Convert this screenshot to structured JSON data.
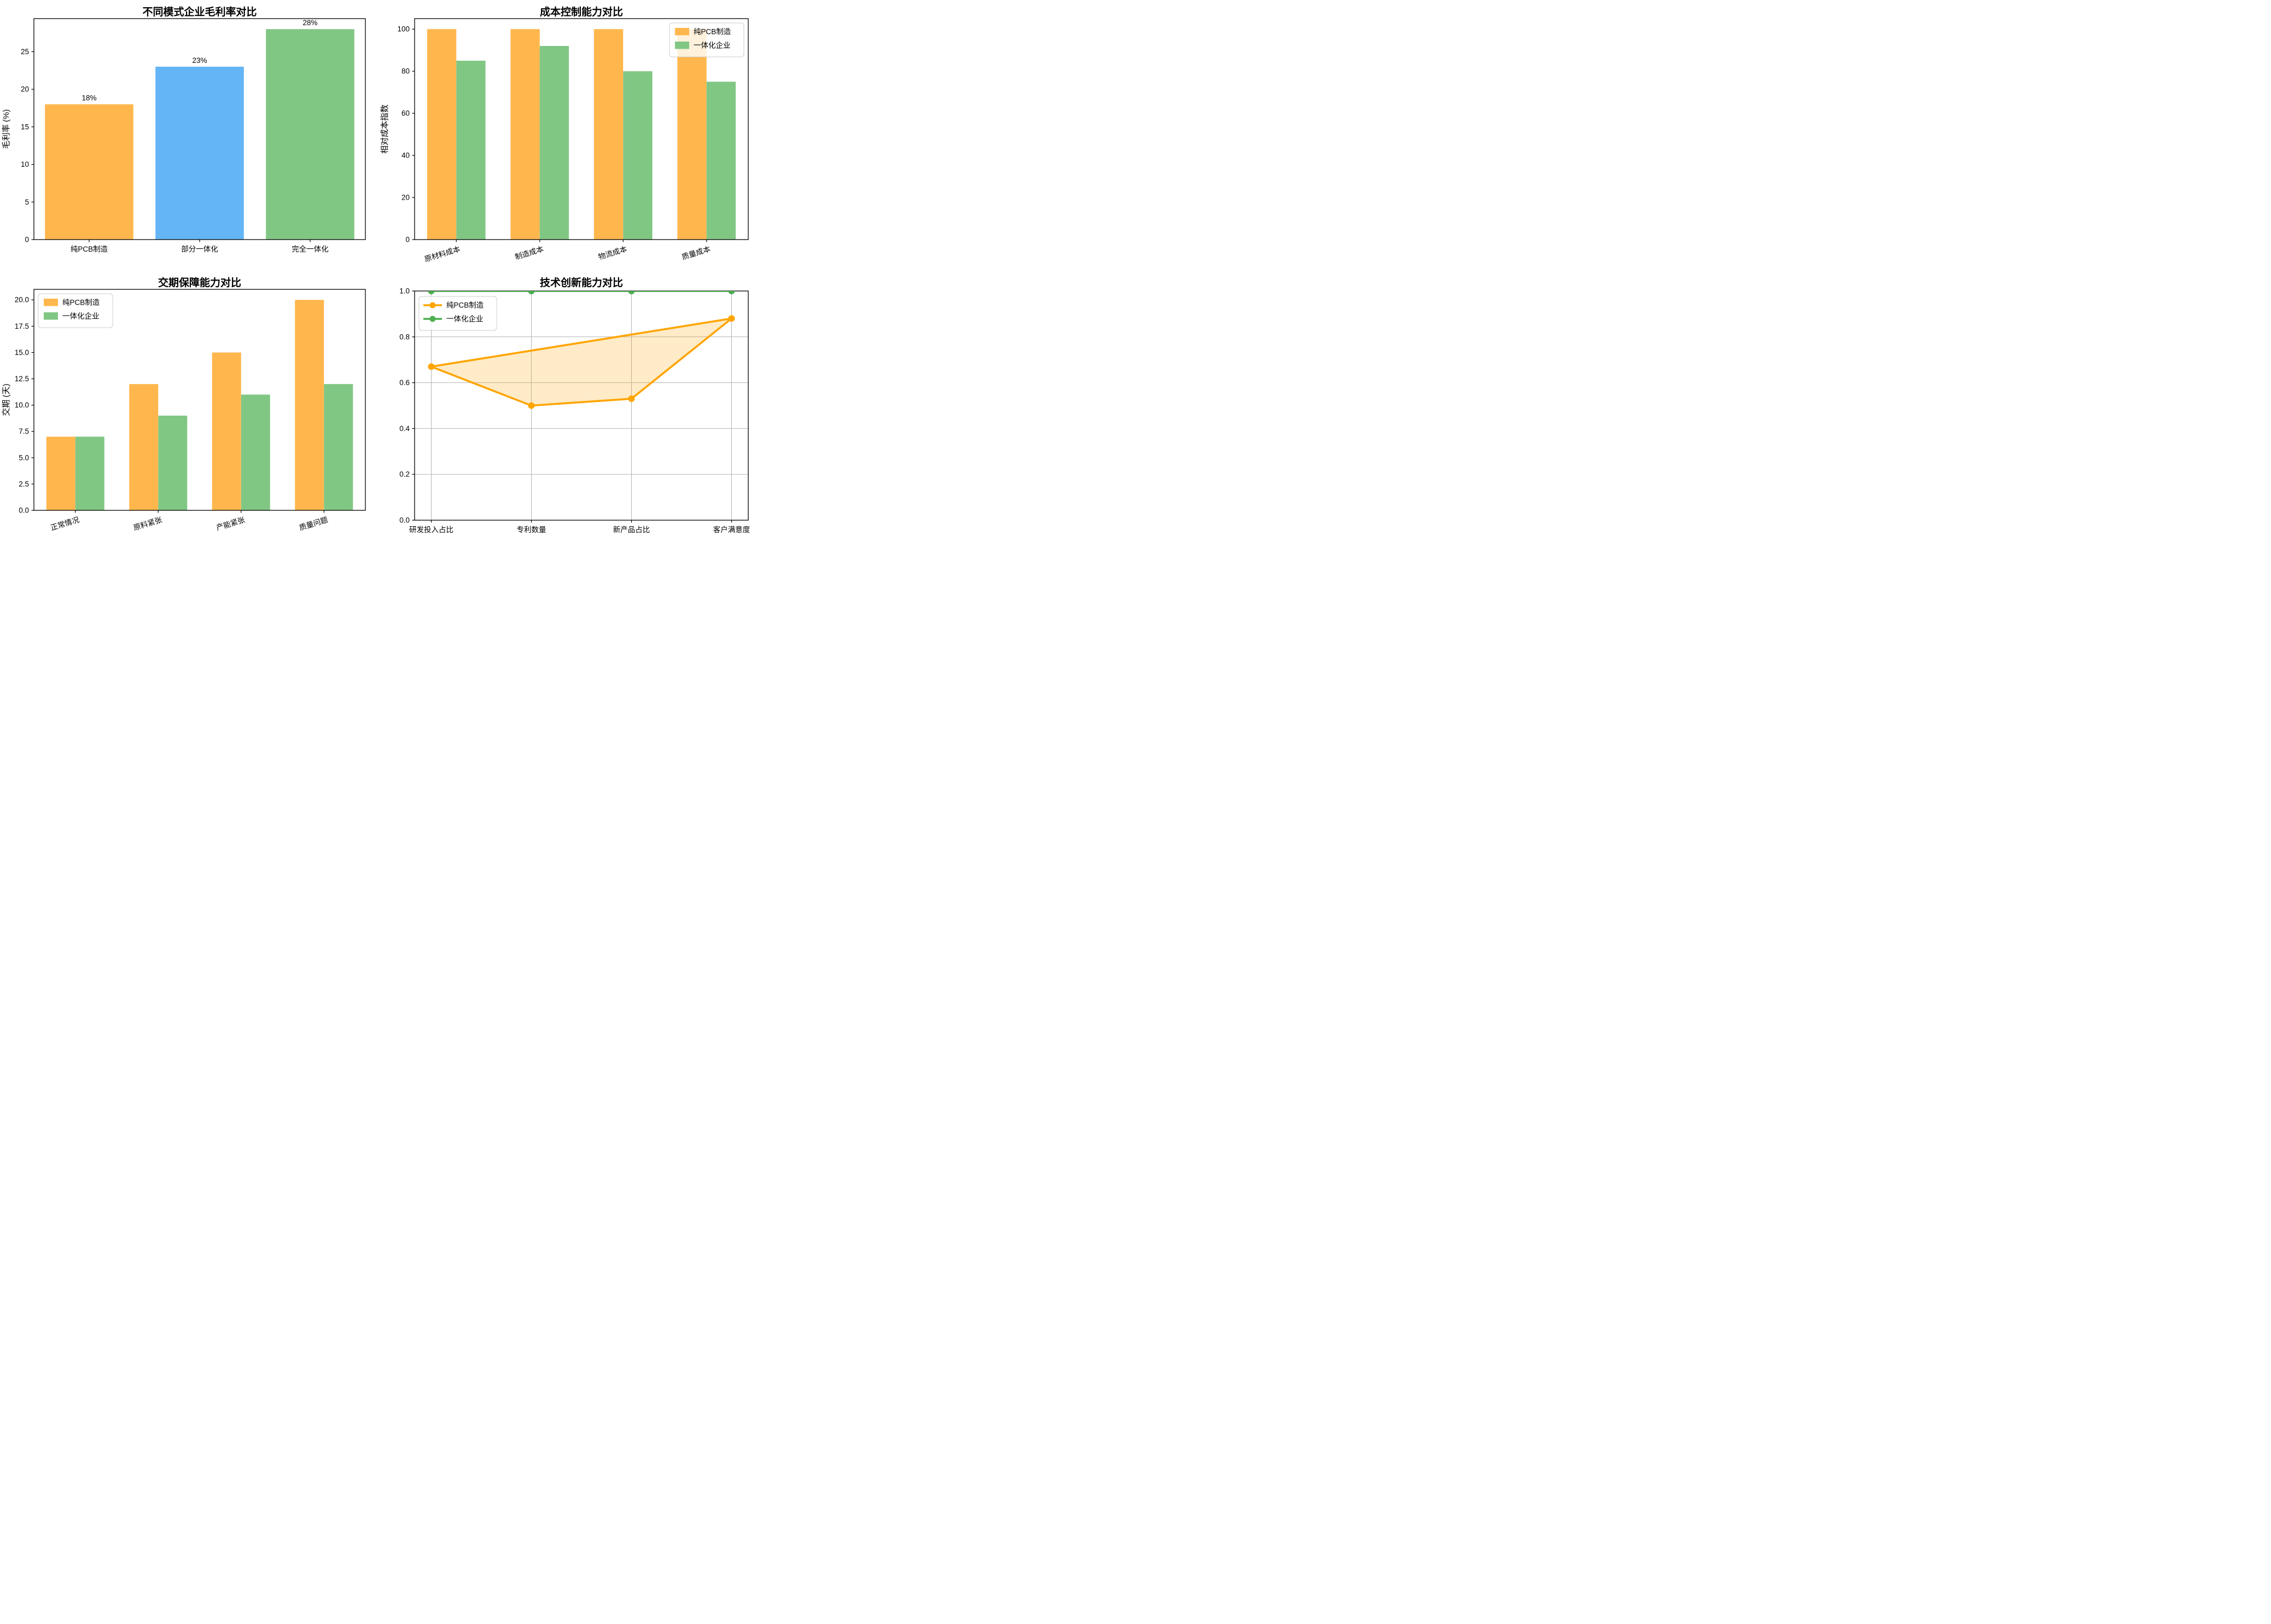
{
  "figure": {
    "background": "#ffffff"
  },
  "chart_data": [
    {
      "type": "bar",
      "title": "不同模式企业毛利率对比",
      "ylabel": "毛利率 (%)",
      "categories": [
        "纯PCB制造",
        "部分一体化",
        "完全一体化"
      ],
      "values": [
        18,
        23,
        28
      ],
      "bar_labels": [
        "18%",
        "23%",
        "28%"
      ],
      "bar_colors": [
        "#FFB74D",
        "#64B5F6",
        "#81C784"
      ],
      "bar_width": 0.8,
      "ylim": [
        0,
        29.4
      ],
      "yticks": [
        0,
        5,
        10,
        15,
        20,
        25
      ],
      "ytick_labels": [
        "0",
        "5",
        "10",
        "15",
        "20",
        "25"
      ],
      "grid": false,
      "xtick_rotation": 0
    },
    {
      "type": "grouped_bar",
      "title": "成本控制能力对比",
      "ylabel": "相对成本指数",
      "categories": [
        "原材料成本",
        "制造成本",
        "物流成本",
        "质量成本"
      ],
      "series": [
        {
          "name": "纯PCB制造",
          "color": "#FFB74D",
          "values": [
            100,
            100,
            100,
            100
          ]
        },
        {
          "name": "一体化企业",
          "color": "#81C784",
          "values": [
            85,
            92,
            80,
            75
          ]
        }
      ],
      "bar_width": 0.35,
      "ylim": [
        0,
        105
      ],
      "yticks": [
        0,
        20,
        40,
        60,
        80,
        100
      ],
      "ytick_labels": [
        "0",
        "20",
        "40",
        "60",
        "80",
        "100"
      ],
      "grid": false,
      "legend": {
        "position": "upper-right",
        "kind": "patch"
      },
      "xtick_rotation": 17
    },
    {
      "type": "grouped_bar",
      "title": "交期保障能力对比",
      "ylabel": "交期 (天)",
      "categories": [
        "正常情况",
        "原料紧张",
        "产能紧张",
        "质量问题"
      ],
      "series": [
        {
          "name": "纯PCB制造",
          "color": "#FFB74D",
          "values": [
            7,
            12,
            15,
            20
          ]
        },
        {
          "name": "一体化企业",
          "color": "#81C784",
          "values": [
            7,
            9,
            11,
            12
          ]
        }
      ],
      "bar_width": 0.35,
      "ylim": [
        0,
        21
      ],
      "yticks": [
        0,
        2.5,
        5,
        7.5,
        10,
        12.5,
        15,
        17.5,
        20
      ],
      "ytick_labels": [
        "0.0",
        "2.5",
        "5.0",
        "7.5",
        "10.0",
        "12.5",
        "15.0",
        "17.5",
        "20.0"
      ],
      "grid": false,
      "legend": {
        "position": "upper-left",
        "kind": "patch"
      },
      "xtick_rotation": 17
    },
    {
      "type": "line",
      "title": "技术创新能力对比",
      "ylabel": "",
      "categories": [
        "研发投入占比",
        "专利数量",
        "新产品占比",
        "客户满意度"
      ],
      "series": [
        {
          "name": "纯PCB制造",
          "color": "#FFA500",
          "values": [
            0.67,
            0.5,
            0.53,
            0.88
          ],
          "fill": true,
          "fill_opacity": 0.22,
          "closed": true
        },
        {
          "name": "一体化企业",
          "color": "#4CAF50",
          "values": [
            1.0,
            1.0,
            1.0,
            1.0
          ],
          "fill": false
        }
      ],
      "ylim": [
        0,
        1.0
      ],
      "yticks": [
        0,
        0.2,
        0.4,
        0.6,
        0.8,
        1.0
      ],
      "ytick_labels": [
        "0.0",
        "0.2",
        "0.4",
        "0.6",
        "0.8",
        "1.0"
      ],
      "grid": true,
      "grid_color": "#b3b3b3",
      "x_margin": 0.05,
      "legend": {
        "position": "upper-left",
        "kind": "line"
      },
      "xtick_rotation": 0
    }
  ]
}
